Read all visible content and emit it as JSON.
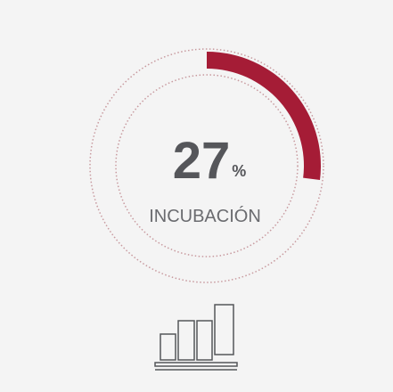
{
  "chart_data": {
    "type": "donut",
    "categories": [
      "INCUBACIÓN"
    ],
    "values": [
      27
    ],
    "unit": "%",
    "color": "#a51c36",
    "ylim": [
      0,
      100
    ]
  }
}
